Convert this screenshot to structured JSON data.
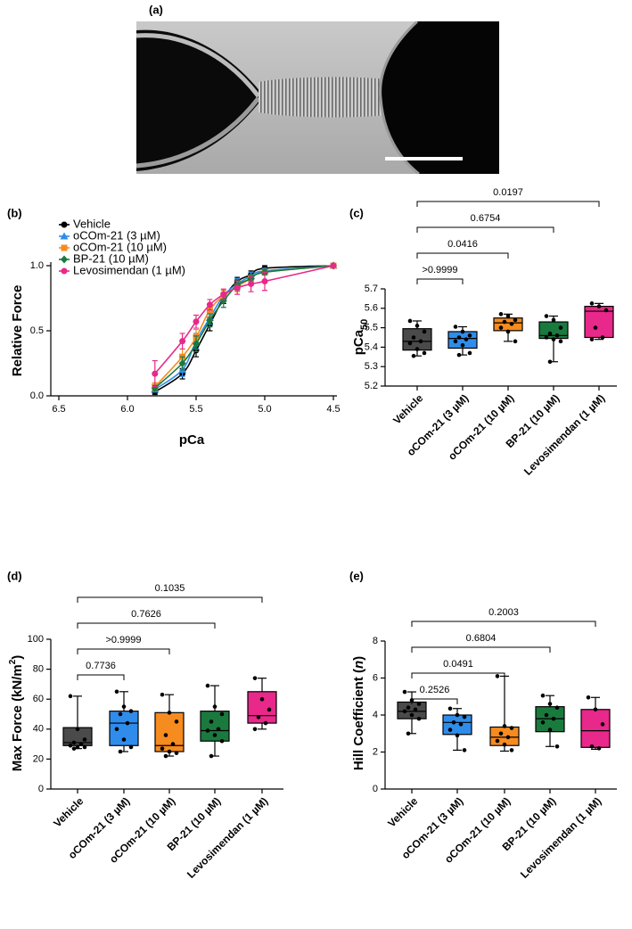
{
  "image_panel": {
    "label": "(a)"
  },
  "chart_data": [
    {
      "type": "line",
      "label": "(b)",
      "xlabel": "pCa",
      "ylabel": "Relative Force",
      "x": [
        5.8,
        5.6,
        5.5,
        5.4,
        5.3,
        5.2,
        5.1,
        5.0,
        4.5
      ],
      "xlim": [
        6.5,
        4.5
      ],
      "xticks": [
        6.5,
        {
          "value": 6,
          "label": "6.0"
        },
        5.5,
        {
          "value": 5,
          "label": "5.0"
        },
        4.5
      ],
      "ylim": [
        0,
        1
      ],
      "yticks": [
        {
          "value": 0,
          "label": "0.0"
        },
        0.5,
        {
          "value": 1,
          "label": "1.0"
        }
      ],
      "series": [
        {
          "name": "Vehicle",
          "color": "#000000",
          "marker": "circle",
          "values": [
            0.03,
            0.17,
            0.35,
            0.55,
            0.75,
            0.88,
            0.93,
            0.98,
            1.0
          ],
          "errors": [
            0.02,
            0.04,
            0.05,
            0.05,
            0.04,
            0.03,
            0.03,
            0.02,
            0.0
          ]
        },
        {
          "name": "oCOm-21 (3 µM)",
          "color": "#2f8ceb",
          "marker": "triangle",
          "values": [
            0.05,
            0.2,
            0.42,
            0.6,
            0.77,
            0.86,
            0.92,
            0.96,
            1.0
          ],
          "errors": [
            0.02,
            0.05,
            0.06,
            0.05,
            0.04,
            0.04,
            0.03,
            0.02,
            0.0
          ]
        },
        {
          "name": "oCOm-21 (10 µM)",
          "color": "#f68b1f",
          "marker": "square",
          "values": [
            0.07,
            0.3,
            0.45,
            0.66,
            0.77,
            0.84,
            0.9,
            0.95,
            1.0
          ],
          "errors": [
            0.03,
            0.06,
            0.06,
            0.05,
            0.04,
            0.04,
            0.03,
            0.02,
            0.0
          ]
        },
        {
          "name": "BP-21 (10 µM)",
          "color": "#1a7a3e",
          "marker": "diamond",
          "values": [
            0.06,
            0.25,
            0.4,
            0.58,
            0.73,
            0.85,
            0.9,
            0.95,
            1.0
          ],
          "errors": [
            0.02,
            0.05,
            0.06,
            0.05,
            0.05,
            0.04,
            0.03,
            0.02,
            0.0
          ]
        },
        {
          "name": "Levosimendan (1 µM)",
          "color": "#e8288a",
          "marker": "circle",
          "values": [
            0.17,
            0.42,
            0.57,
            0.7,
            0.78,
            0.83,
            0.86,
            0.88,
            1.0
          ],
          "errors": [
            0.1,
            0.06,
            0.05,
            0.04,
            0.04,
            0.05,
            0.06,
            0.07,
            0.0
          ]
        }
      ]
    },
    {
      "type": "box",
      "label": "(c)",
      "ylabel": [
        "pCa",
        "50"
      ],
      "categories": [
        "Vehicle",
        "oCOm-21 (3 µM)",
        "oCOm-21 (10 µM)",
        "BP-21 (10 µM)",
        "Levosimendan (1 µM)"
      ],
      "colors": [
        "#4a4a4a",
        "#2f8ceb",
        "#f68b1f",
        "#1a7a3e",
        "#e8288a"
      ],
      "min": [
        5.355,
        5.36,
        5.43,
        5.325,
        5.44
      ],
      "q1": [
        5.385,
        5.395,
        5.485,
        5.445,
        5.45
      ],
      "median": [
        5.43,
        5.445,
        5.525,
        5.46,
        5.585
      ],
      "q3": [
        5.495,
        5.48,
        5.55,
        5.53,
        5.61
      ],
      "max": [
        5.535,
        5.505,
        5.57,
        5.56,
        5.625
      ],
      "points": [
        [
          5.535,
          5.51,
          5.48,
          5.45,
          5.43,
          5.42,
          5.39,
          5.37,
          5.355
        ],
        [
          5.505,
          5.48,
          5.46,
          5.45,
          5.44,
          5.43,
          5.41,
          5.37,
          5.36
        ],
        [
          5.57,
          5.56,
          5.54,
          5.53,
          5.52,
          5.5,
          5.48,
          5.43
        ],
        [
          5.56,
          5.54,
          5.5,
          5.47,
          5.46,
          5.45,
          5.44,
          5.43,
          5.325
        ],
        [
          5.625,
          5.61,
          5.59,
          5.5,
          5.45,
          5.44
        ]
      ],
      "pvalues": [
        null,
        ">0.9999",
        "0.0416",
        "0.6754",
        "0.0197"
      ],
      "ylim": [
        5.2,
        5.7
      ],
      "yticks": [
        5.2,
        5.3,
        5.4,
        5.5,
        5.6,
        5.7
      ]
    },
    {
      "type": "box",
      "label": "(d)",
      "ylabel": [
        "Max Force (kN/m",
        "2",
        ")"
      ],
      "categories": [
        "Vehicle",
        "oCOm-21 (3 µM)",
        "oCOm-21 (10 µM)",
        "BP-21 (10 µM)",
        "Levosimendan (1 µM)"
      ],
      "colors": [
        "#4a4a4a",
        "#2f8ceb",
        "#f68b1f",
        "#1a7a3e",
        "#e8288a"
      ],
      "min": [
        27,
        25,
        22,
        22,
        40
      ],
      "q1": [
        29,
        29,
        25,
        32,
        44
      ],
      "median": [
        31,
        44,
        29,
        39,
        49
      ],
      "q3": [
        41,
        52,
        51,
        52,
        65
      ],
      "max": [
        62,
        65,
        63,
        69,
        74
      ],
      "points": [
        [
          62,
          40,
          33,
          31,
          30,
          29,
          28,
          28,
          27
        ],
        [
          65,
          55,
          52,
          50,
          44,
          40,
          33,
          28,
          25
        ],
        [
          63,
          51,
          45,
          36,
          30,
          27,
          25,
          24,
          22
        ],
        [
          69,
          55,
          50,
          45,
          40,
          39,
          36,
          32,
          22
        ],
        [
          74,
          60,
          53,
          48,
          44,
          40
        ]
      ],
      "pvalues": [
        null,
        "0.7736",
        ">0.9999",
        "0.7626",
        "0.1035"
      ],
      "ylim": [
        0,
        100
      ],
      "yticks": [
        0,
        20,
        40,
        60,
        80,
        100
      ]
    },
    {
      "type": "box",
      "label": "(e)",
      "ylabel": [
        "Hill Coefficient (",
        "n",
        ")"
      ],
      "categories": [
        "Vehicle",
        "oCOm-21 (3 µM)",
        "oCOm-21 (10 µM)",
        "BP-21 (10 µM)",
        "Levosimendan (1 µM)"
      ],
      "colors": [
        "#4a4a4a",
        "#2f8ceb",
        "#f68b1f",
        "#1a7a3e",
        "#e8288a"
      ],
      "min": [
        3.0,
        2.1,
        2.05,
        2.3,
        2.15
      ],
      "q1": [
        3.8,
        2.95,
        2.35,
        3.1,
        2.25
      ],
      "median": [
        4.2,
        3.6,
        2.8,
        3.8,
        3.15
      ],
      "q3": [
        4.7,
        4.0,
        3.35,
        4.45,
        4.3
      ],
      "max": [
        5.25,
        4.35,
        6.1,
        5.05,
        4.95
      ],
      "points": [
        [
          5.25,
          4.8,
          4.6,
          4.4,
          4.3,
          4.2,
          4.0,
          3.8,
          3.0
        ],
        [
          4.35,
          4.0,
          3.9,
          3.6,
          3.5,
          3.2,
          2.9,
          2.1
        ],
        [
          6.1,
          3.4,
          3.3,
          3.0,
          2.8,
          2.6,
          2.4,
          2.1
        ],
        [
          5.05,
          4.6,
          4.4,
          4.0,
          3.8,
          3.6,
          3.2,
          2.3
        ],
        [
          4.95,
          4.3,
          3.5,
          2.3,
          2.2
        ]
      ],
      "pvalues": [
        null,
        "0.2526",
        "0.0491",
        "0.6804",
        "0.2003"
      ],
      "ylim": [
        0,
        8
      ],
      "yticks": [
        0,
        2,
        4,
        6,
        8
      ]
    }
  ]
}
